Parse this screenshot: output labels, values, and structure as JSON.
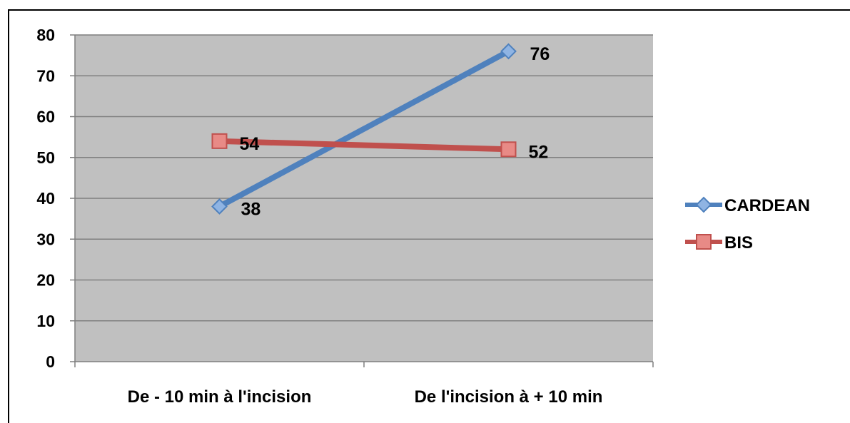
{
  "chart_data": {
    "type": "line",
    "title": "",
    "xlabel": "",
    "ylabel": "",
    "categories": [
      "De - 10 min à l'incision",
      "De l'incision à + 10 min"
    ],
    "ylim": [
      0,
      80
    ],
    "yticks": [
      0,
      10,
      20,
      30,
      40,
      50,
      60,
      70,
      80
    ],
    "grid": true,
    "plot_background": "#c0c0c0",
    "legend_position": "right",
    "series": [
      {
        "name": "CARDEAN",
        "values": [
          38,
          76
        ],
        "color": "#4f81bd",
        "marker": "diamond",
        "data_labels": [
          "38",
          "76"
        ]
      },
      {
        "name": "BIS",
        "values": [
          54,
          52
        ],
        "color": "#c0504d",
        "marker": "square",
        "data_labels": [
          "54",
          "52"
        ]
      }
    ]
  }
}
